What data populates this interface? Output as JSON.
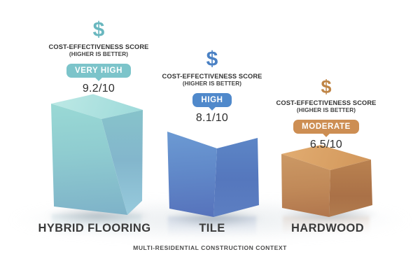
{
  "chart_data": {
    "type": "bar",
    "categories": [
      "HYBRID FLOORING",
      "TILE",
      "HARDWOOD"
    ],
    "values": [
      9.2,
      8.1,
      6.5
    ],
    "value_labels": [
      "9.2/10",
      "8.1/10",
      "6.5/10"
    ],
    "ratings": [
      "VERY HIGH",
      "HIGH",
      "MODERATE"
    ],
    "title": "COST-EFFECTIVENESS SCORE",
    "subtitle": "(HIGHER IS BETTER)",
    "annotation": "MULTI-RESIDENTIAL CONSTRUCTION CONTEXT",
    "ylim": [
      0,
      10
    ],
    "legend_position": "none",
    "grid": false,
    "bar_colors": [
      "#8fd0d2",
      "#6190cc",
      "#c2895a"
    ]
  },
  "columns": [
    {
      "id": "hybrid-flooring",
      "dollar_symbol": "$",
      "title": "COST-EFFECTIVENESS SCORE",
      "subtitle": "(HIGHER IS BETTER)",
      "rating": "VERY HIGH",
      "score": "9.2/10",
      "product": "HYBRID FLOORING",
      "accent_color": "#69b7bf",
      "badge_color": "#7cc4ca"
    },
    {
      "id": "tile",
      "dollar_symbol": "$",
      "title": "COST-EFFECTIVENESS SCORE",
      "subtitle": "(HIGHER IS BETTER)",
      "rating": "HIGH",
      "score": "8.1/10",
      "product": "TILE",
      "accent_color": "#4a81c4",
      "badge_color": "#5089cb"
    },
    {
      "id": "hardwood",
      "dollar_symbol": "$",
      "title": "COST-EFFECTIVENESS SCORE",
      "subtitle": "(HIGHER IS BETTER)",
      "rating": "MODERATE",
      "score": "6.5/10",
      "product": "HARDWOOD",
      "accent_color": "#bf8546",
      "badge_color": "#cd8e53"
    }
  ],
  "footer": {
    "caption": "MULTI-RESIDENTIAL CONSTRUCTION CONTEXT"
  }
}
